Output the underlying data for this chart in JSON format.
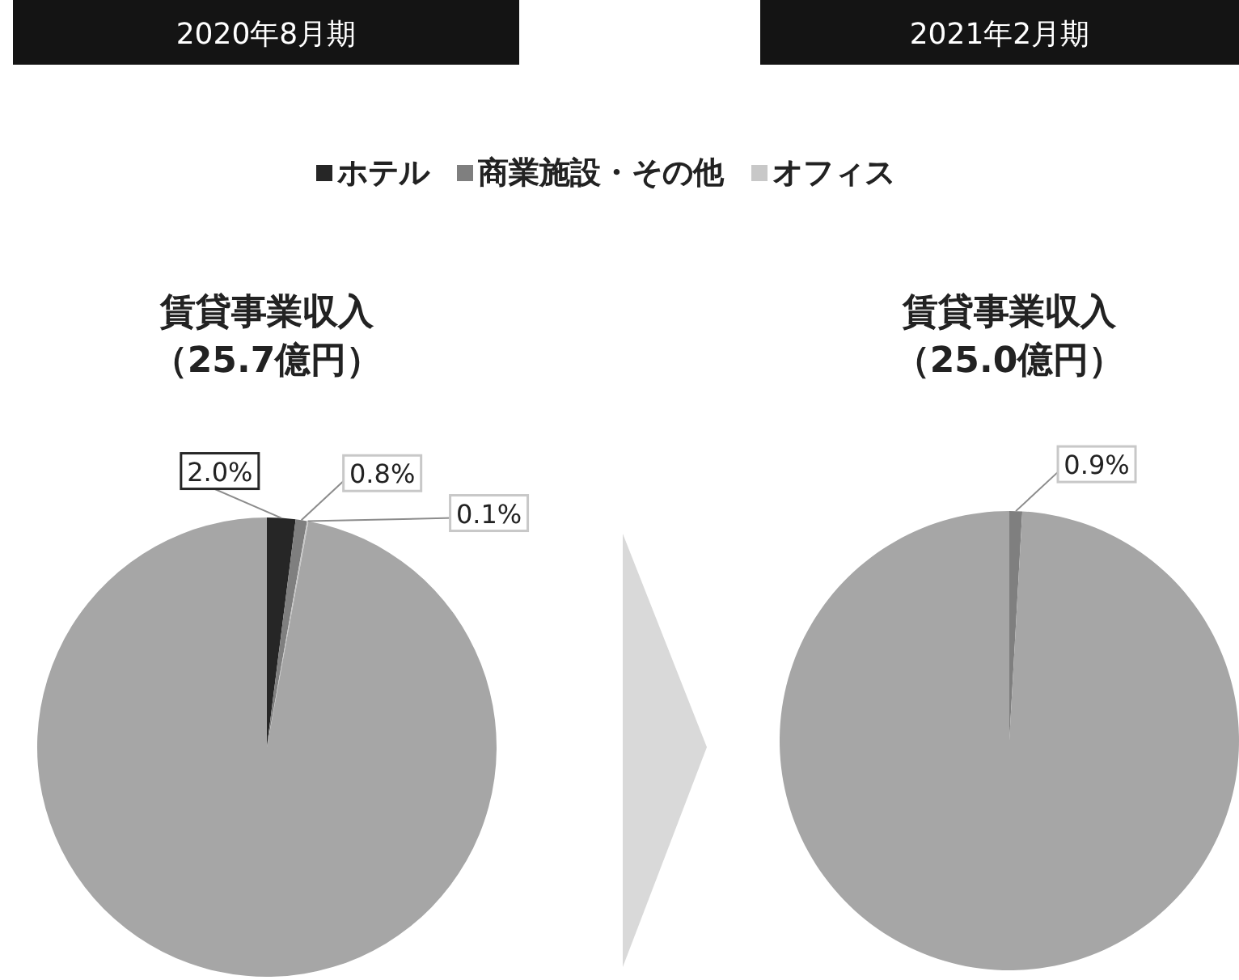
{
  "chart_data": [
    {
      "type": "pie",
      "title": "2020年8月期",
      "subtitle": "賃貸事業収入（25.7億円）",
      "categories": [
        "ホテル",
        "商業施設・その他",
        "オフィス",
        null
      ],
      "values": [
        2.0,
        0.8,
        0.1,
        97.1
      ],
      "colors": [
        "#262626",
        "#7f7f7f",
        "#c8c8c8",
        "#a6a6a6"
      ],
      "value_labels": [
        "2.0%",
        "0.8%",
        "0.1%",
        null
      ],
      "legend": "top"
    },
    {
      "type": "pie",
      "title": "2021年2月期",
      "subtitle": "賃貸事業収入（25.0億円）",
      "categories": [
        null,
        null
      ],
      "values": [
        0.9,
        99.1
      ],
      "colors": [
        "#7f7f7f",
        "#a6a6a6"
      ],
      "value_labels": [
        "0.9%",
        null
      ]
    }
  ]
}
